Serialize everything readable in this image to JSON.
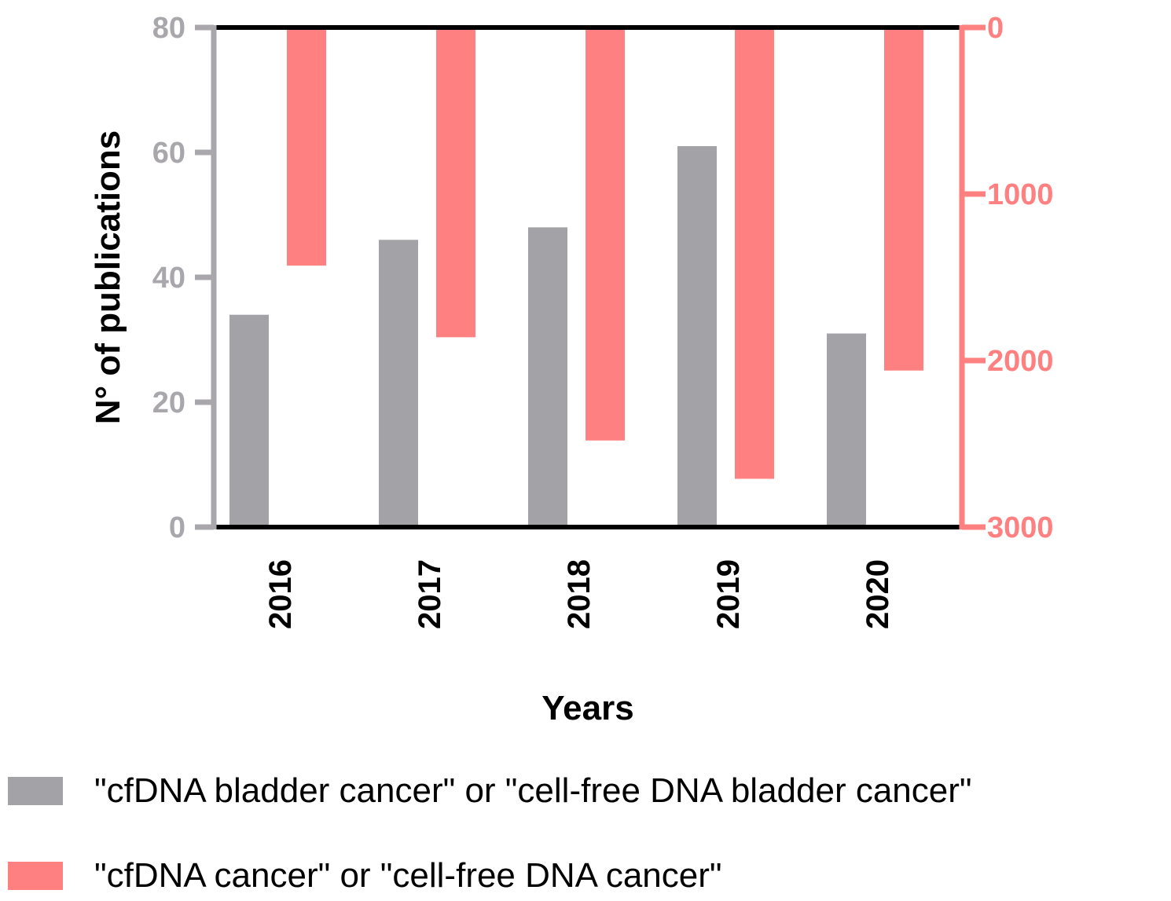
{
  "chart_data": {
    "type": "bar",
    "categories": [
      "2016",
      "2017",
      "2018",
      "2019",
      "2020"
    ],
    "xlabel": "Years",
    "ylabel": "N° of publications",
    "series": [
      {
        "name": "\"cfDNA bladder cancer\" or \"cell-free DNA bladder cancer\"",
        "axis": "left",
        "color": "#a3a2a6",
        "values": [
          34,
          46,
          48,
          61,
          31
        ]
      },
      {
        "name": "\"cfDNA cancer\" or \"cell-free DNA cancer\"",
        "axis": "right",
        "color": "#ff8080",
        "values": [
          1430,
          1860,
          2480,
          2710,
          2060
        ]
      }
    ],
    "ylim_left": [
      0,
      80
    ],
    "yticks_left": [
      0,
      20,
      40,
      60,
      80
    ],
    "ylim_right": [
      0,
      3000
    ],
    "yticks_right": [
      0,
      1000,
      2000,
      3000
    ],
    "right_axis_inverted": true,
    "grid": false
  },
  "legend": {
    "item1": "\"cfDNA bladder cancer\" or \"cell-free DNA bladder cancer\"",
    "item2": "\"cfDNA cancer\" or \"cell-free DNA cancer\""
  }
}
